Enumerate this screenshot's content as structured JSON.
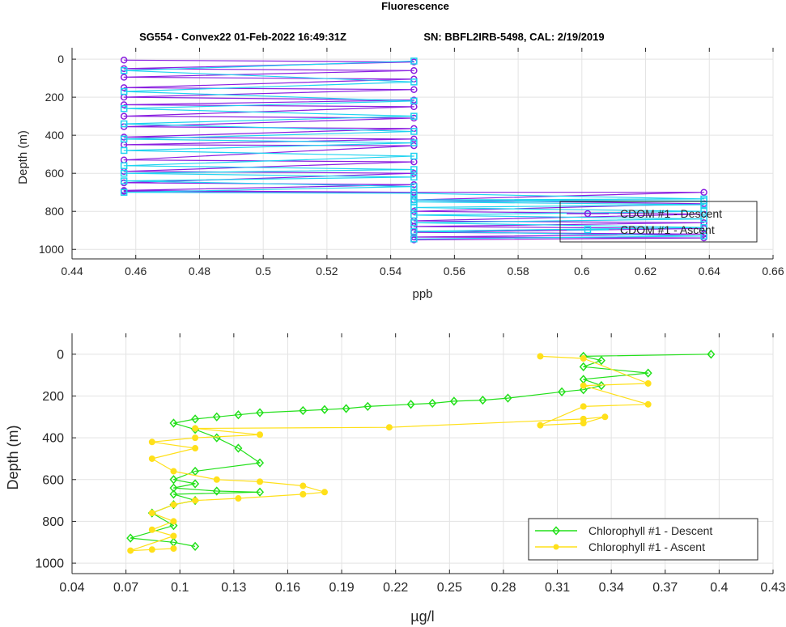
{
  "figure": {
    "title": "Fluorescence",
    "subtitle_left": "SG554 - Convex22 01-Feb-2022 16:49:31Z",
    "subtitle_right": "SN: BBFL2IRB-5498, CAL: 2/19/2019"
  },
  "colors": {
    "cdom_descent": "#8a1fe0",
    "cdom_ascent": "#1fd3f0",
    "chl_descent": "#22e01a",
    "chl_ascent": "#ffe01a",
    "grid": "#e3e3e3",
    "axes": "#262626"
  },
  "chart_data": [
    {
      "type": "line",
      "xlabel": "ppb",
      "ylabel": "Depth (m)",
      "xlim": [
        0.44,
        0.66
      ],
      "ylim": [
        1050,
        -60
      ],
      "y_reversed": true,
      "grid": true,
      "legend_position": "bottom-right",
      "x_ticks": [
        "0.44",
        "0.46",
        "0.48",
        "0.5",
        "0.52",
        "0.54",
        "0.56",
        "0.58",
        "0.6",
        "0.62",
        "0.64",
        "0.66"
      ],
      "y_ticks": [
        "0",
        "200",
        "400",
        "600",
        "800",
        "1000"
      ],
      "series": [
        {
          "name": "CDOM #1 - Descent",
          "color": "#8a1fe0",
          "marker": "circle",
          "x": [
            0.4563,
            0.5473,
            0.4563,
            0.5473,
            0.4563,
            0.5473,
            0.4563,
            0.5473,
            0.4563,
            0.5473,
            0.4563,
            0.5473,
            0.4563,
            0.5473,
            0.4563,
            0.5473,
            0.4563,
            0.5473,
            0.4563,
            0.5473,
            0.4563,
            0.5473,
            0.4563,
            0.5473,
            0.4563,
            0.5473,
            0.4563,
            0.5473,
            0.4563,
            0.5473,
            0.6383,
            0.5473,
            0.6383,
            0.5473,
            0.6383,
            0.5473,
            0.6383,
            0.5473,
            0.6383,
            0.5473,
            0.6383,
            0.5473,
            0.6383,
            0.5473
          ],
          "y": [
            5,
            15,
            50,
            60,
            95,
            105,
            150,
            160,
            200,
            215,
            240,
            250,
            300,
            310,
            355,
            365,
            410,
            420,
            450,
            455,
            530,
            540,
            590,
            600,
            650,
            660,
            690,
            700,
            695,
            700,
            700,
            740,
            760,
            800,
            815,
            850,
            860,
            880,
            890,
            910,
            920,
            935,
            940,
            950
          ]
        },
        {
          "name": "CDOM #1 - Ascent",
          "color": "#1fd3f0",
          "marker": "square",
          "x": [
            0.5473,
            0.6383,
            0.5473,
            0.6383,
            0.5473,
            0.6383,
            0.5473,
            0.6383,
            0.5473,
            0.6383,
            0.5473,
            0.6383,
            0.5473,
            0.6383,
            0.5473,
            0.4563,
            0.5473,
            0.4563,
            0.5473,
            0.4563,
            0.5473,
            0.4563,
            0.5473,
            0.4563,
            0.5473,
            0.4563,
            0.5473,
            0.4563,
            0.5473,
            0.4563,
            0.5473,
            0.4563,
            0.5473,
            0.4563,
            0.5473
          ],
          "y": [
            945,
            930,
            905,
            885,
            860,
            840,
            820,
            800,
            780,
            765,
            750,
            745,
            740,
            735,
            705,
            700,
            670,
            640,
            620,
            600,
            580,
            560,
            510,
            480,
            440,
            420,
            380,
            340,
            300,
            260,
            220,
            170,
            120,
            60,
            10
          ]
        }
      ]
    },
    {
      "type": "line",
      "xlabel": "µg/l",
      "ylabel": "Depth (m)",
      "xlim": [
        0.04,
        0.43
      ],
      "ylim": [
        1050,
        -100
      ],
      "y_reversed": true,
      "grid": true,
      "legend_position": "bottom-right",
      "x_ticks": [
        "0.04",
        "0.07",
        "0.1",
        "0.13",
        "0.16",
        "0.19",
        "0.22",
        "0.25",
        "0.28",
        "0.31",
        "0.34",
        "0.37",
        "0.4",
        "0.43"
      ],
      "y_ticks": [
        "0",
        "200",
        "400",
        "600",
        "800",
        "1000"
      ],
      "series": [
        {
          "name": "Chlorophyll #1 - Descent",
          "color": "#22e01a",
          "marker": "diamond",
          "x": [
            0.3955,
            0.3245,
            0.3345,
            0.3245,
            0.3605,
            0.3245,
            0.3345,
            0.3245,
            0.3125,
            0.2825,
            0.2685,
            0.2525,
            0.2405,
            0.2285,
            0.2045,
            0.1925,
            0.1805,
            0.1685,
            0.1445,
            0.1325,
            0.1205,
            0.1085,
            0.0965,
            0.1085,
            0.1205,
            0.1325,
            0.1445,
            0.1085,
            0.0965,
            0.1085,
            0.0965,
            0.1205,
            0.1445,
            0.0965,
            0.1085,
            0.0965,
            0.0845,
            0.0965,
            0.0725,
            0.0965,
            0.1085
          ],
          "y": [
            0,
            10,
            30,
            60,
            90,
            120,
            150,
            170,
            180,
            210,
            220,
            225,
            235,
            240,
            250,
            260,
            265,
            270,
            280,
            290,
            300,
            310,
            330,
            360,
            400,
            450,
            520,
            560,
            600,
            620,
            640,
            655,
            660,
            670,
            700,
            720,
            760,
            820,
            880,
            900,
            920
          ]
        },
        {
          "name": "Chlorophyll #1 - Ascent",
          "color": "#ffe01a",
          "marker": "circle",
          "x": [
            0.3005,
            0.3245,
            0.3605,
            0.3245,
            0.3605,
            0.3245,
            0.3005,
            0.3245,
            0.3365,
            0.3245,
            0.2165,
            0.1085,
            0.1445,
            0.1085,
            0.0845,
            0.1085,
            0.0845,
            0.0965,
            0.1205,
            0.1445,
            0.1685,
            0.1805,
            0.1685,
            0.1325,
            0.1085,
            0.0965,
            0.0845,
            0.0965,
            0.0845,
            0.0965,
            0.0725,
            0.0845,
            0.0965
          ],
          "y": [
            10,
            20,
            140,
            150,
            240,
            250,
            340,
            330,
            300,
            310,
            350,
            355,
            385,
            400,
            420,
            450,
            500,
            560,
            600,
            610,
            630,
            660,
            670,
            690,
            700,
            720,
            760,
            800,
            840,
            870,
            940,
            935,
            930
          ]
        }
      ]
    }
  ]
}
